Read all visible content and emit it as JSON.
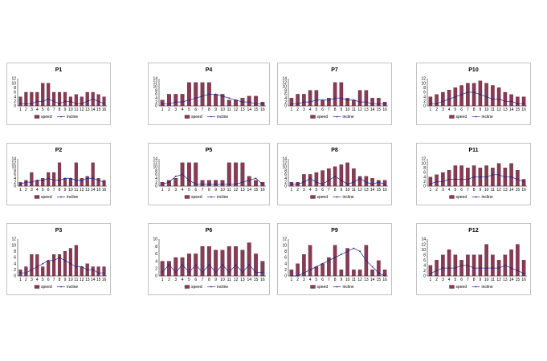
{
  "colors": {
    "bar": "#8b3a55",
    "line": "#1f2a8a",
    "frame": "#999999"
  },
  "chart_data": [
    {
      "type": "bar",
      "title": "P1",
      "categories": [
        "1",
        "2",
        "3",
        "4",
        "5",
        "6",
        "7",
        "8",
        "9",
        "10",
        "11",
        "12",
        "13",
        "14",
        "15",
        "16"
      ],
      "ylim": [
        0,
        12
      ],
      "yticks": [
        "0",
        "2",
        "4",
        "6",
        "8",
        "10",
        "12"
      ],
      "series": [
        {
          "name": "speed",
          "type": "bar",
          "values": [
            4,
            6,
            6,
            6,
            10,
            10,
            6,
            6,
            6,
            4,
            5,
            4,
            6,
            6,
            5,
            4
          ]
        },
        {
          "name": "incline",
          "type": "line",
          "values": [
            1,
            1,
            1,
            2,
            2,
            3,
            2,
            1,
            2,
            2,
            1,
            1,
            2,
            3,
            2,
            1
          ]
        }
      ]
    },
    {
      "type": "bar",
      "title": "P4",
      "categories": [
        "1",
        "2",
        "3",
        "4",
        "5",
        "6",
        "7",
        "8",
        "9",
        "10",
        "11",
        "12",
        "13",
        "14",
        "15",
        "16"
      ],
      "ylim": [
        0,
        14
      ],
      "yticks": [
        "0",
        "2",
        "4",
        "6",
        "8",
        "10",
        "12",
        "14"
      ],
      "series": [
        {
          "name": "speed",
          "type": "bar",
          "values": [
            3,
            6,
            6,
            6,
            12,
            12,
            12,
            12,
            6,
            6,
            3,
            3,
            4,
            5,
            5,
            2
          ]
        },
        {
          "name": "incline",
          "type": "line",
          "values": [
            1,
            1,
            2,
            2,
            3,
            4,
            5,
            6,
            6,
            5,
            4,
            3,
            2,
            2,
            1,
            1
          ]
        }
      ]
    },
    {
      "type": "bar",
      "title": "P7",
      "categories": [
        "1",
        "2",
        "3",
        "4",
        "5",
        "6",
        "7",
        "8",
        "9",
        "10",
        "11",
        "12",
        "13",
        "14",
        "15",
        "16"
      ],
      "ylim": [
        0,
        14
      ],
      "yticks": [
        "0",
        "2",
        "4",
        "6",
        "8",
        "10",
        "12",
        "14"
      ],
      "series": [
        {
          "name": "speed",
          "type": "bar",
          "values": [
            4,
            6,
            6,
            8,
            8,
            3,
            4,
            12,
            12,
            4,
            3,
            8,
            8,
            4,
            4,
            2
          ]
        },
        {
          "name": "incline",
          "type": "line",
          "values": [
            1,
            1,
            2,
            2,
            3,
            3,
            3,
            4,
            4,
            3,
            3,
            2,
            2,
            1,
            1,
            1
          ]
        }
      ]
    },
    {
      "type": "bar",
      "title": "P10",
      "categories": [
        "1",
        "2",
        "3",
        "4",
        "5",
        "6",
        "7",
        "8",
        "9",
        "10",
        "11",
        "12",
        "13",
        "14",
        "15",
        "16"
      ],
      "ylim": [
        0,
        12
      ],
      "yticks": [
        "0",
        "2",
        "4",
        "6",
        "8",
        "10",
        "12"
      ],
      "series": [
        {
          "name": "speed",
          "type": "bar",
          "values": [
            4,
            5,
            6,
            7,
            8,
            9,
            10,
            10,
            11,
            10,
            9,
            8,
            6,
            5,
            4,
            4
          ]
        },
        {
          "name": "incline",
          "type": "line",
          "values": [
            1,
            1,
            2,
            3,
            4,
            5,
            6,
            6,
            5,
            4,
            3,
            3,
            2,
            2,
            1,
            1
          ]
        }
      ]
    },
    {
      "type": "bar",
      "title": "P2",
      "categories": [
        "1",
        "2",
        "3",
        "4",
        "5",
        "6",
        "7",
        "8",
        "9",
        "10",
        "11",
        "12",
        "13",
        "14",
        "15",
        "16"
      ],
      "ylim": [
        0,
        14
      ],
      "yticks": [
        "0",
        "2",
        "4",
        "6",
        "8",
        "10",
        "12",
        "14"
      ],
      "series": [
        {
          "name": "speed",
          "type": "bar",
          "values": [
            2,
            3,
            7,
            3,
            4,
            7,
            7,
            12,
            4,
            4,
            12,
            4,
            5,
            12,
            4,
            3
          ]
        },
        {
          "name": "incline",
          "type": "line",
          "values": [
            1,
            2,
            2,
            3,
            3,
            4,
            3,
            3,
            4,
            4,
            3,
            3,
            4,
            4,
            3,
            2
          ]
        }
      ]
    },
    {
      "type": "bar",
      "title": "P5",
      "categories": [
        "1",
        "2",
        "3",
        "4",
        "5",
        "6",
        "7",
        "8",
        "9",
        "10",
        "11",
        "12",
        "13",
        "14",
        "15",
        "16"
      ],
      "ylim": [
        0,
        14
      ],
      "yticks": [
        "0",
        "2",
        "4",
        "6",
        "8",
        "10",
        "12",
        "14"
      ],
      "series": [
        {
          "name": "speed",
          "type": "bar",
          "values": [
            2,
            3,
            4,
            12,
            12,
            12,
            3,
            3,
            3,
            3,
            12,
            12,
            12,
            5,
            3,
            2
          ]
        },
        {
          "name": "incline",
          "type": "line",
          "values": [
            1,
            2,
            5,
            6,
            3,
            1,
            1,
            1,
            1,
            1,
            1,
            1,
            2,
            3,
            4,
            1
          ]
        }
      ]
    },
    {
      "type": "bar",
      "title": "P8",
      "categories": [
        "1",
        "2",
        "3",
        "4",
        "5",
        "6",
        "7",
        "8",
        "9",
        "10",
        "11",
        "12",
        "13",
        "14",
        "15",
        "16"
      ],
      "ylim": [
        0,
        14
      ],
      "yticks": [
        "0",
        "2",
        "4",
        "6",
        "8",
        "10",
        "12",
        "14"
      ],
      "series": [
        {
          "name": "speed",
          "type": "bar",
          "values": [
            2,
            2,
            6,
            6,
            7,
            8,
            9,
            10,
            11,
            12,
            9,
            5,
            5,
            4,
            3,
            3
          ]
        },
        {
          "name": "incline",
          "type": "line",
          "values": [
            1,
            1,
            2,
            4,
            2,
            1,
            3,
            5,
            3,
            1,
            2,
            4,
            2,
            1,
            2,
            1
          ]
        }
      ]
    },
    {
      "type": "bar",
      "title": "P11",
      "categories": [
        "1",
        "2",
        "3",
        "4",
        "5",
        "6",
        "7",
        "8",
        "9",
        "10",
        "11",
        "12",
        "13",
        "14",
        "15",
        "16"
      ],
      "ylim": [
        0,
        12
      ],
      "yticks": [
        "0",
        "2",
        "4",
        "6",
        "8",
        "10",
        "12"
      ],
      "series": [
        {
          "name": "speed",
          "type": "bar",
          "values": [
            4,
            5,
            6,
            7,
            9,
            9,
            8,
            9,
            8,
            9,
            8,
            10,
            8,
            10,
            7,
            3
          ]
        },
        {
          "name": "incline",
          "type": "line",
          "values": [
            1,
            2,
            2,
            3,
            3,
            3,
            3,
            4,
            4,
            4,
            5,
            5,
            4,
            4,
            3,
            2
          ]
        }
      ]
    },
    {
      "type": "bar",
      "title": "P3",
      "categories": [
        "1",
        "2",
        "3",
        "4",
        "5",
        "6",
        "7",
        "8",
        "9",
        "10",
        "11",
        "12",
        "13",
        "14",
        "15",
        "16"
      ],
      "ylim": [
        0,
        12
      ],
      "yticks": [
        "0",
        "2",
        "4",
        "6",
        "8",
        "10",
        "12"
      ],
      "series": [
        {
          "name": "speed",
          "type": "bar",
          "values": [
            2,
            3,
            7,
            7,
            3,
            5,
            7,
            7,
            8,
            9,
            10,
            3,
            4,
            3,
            3,
            3
          ]
        },
        {
          "name": "incline",
          "type": "line",
          "values": [
            1,
            1,
            2,
            3,
            4,
            5,
            5,
            6,
            5,
            4,
            3,
            3,
            2,
            2,
            1,
            1
          ]
        }
      ]
    },
    {
      "type": "bar",
      "title": "P6",
      "categories": [
        "1",
        "2",
        "3",
        "4",
        "5",
        "6",
        "7",
        "8",
        "9",
        "10",
        "11",
        "12",
        "13",
        "14",
        "15",
        "16"
      ],
      "ylim": [
        0,
        10
      ],
      "yticks": [
        "0",
        "2",
        "4",
        "6",
        "8",
        "10"
      ],
      "series": [
        {
          "name": "speed",
          "type": "bar",
          "values": [
            4,
            4,
            5,
            5,
            6,
            6,
            8,
            8,
            7,
            7,
            8,
            8,
            7,
            9,
            6,
            4
          ]
        },
        {
          "name": "incline",
          "type": "line",
          "values": [
            1,
            3,
            1,
            3,
            1,
            3,
            1,
            3,
            1,
            3,
            1,
            3,
            1,
            3,
            1,
            1
          ]
        }
      ]
    },
    {
      "type": "bar",
      "title": "P9",
      "categories": [
        "1",
        "2",
        "3",
        "4",
        "5",
        "6",
        "7",
        "8",
        "9",
        "10",
        "11",
        "12",
        "13",
        "14",
        "15",
        "16"
      ],
      "ylim": [
        0,
        12
      ],
      "yticks": [
        "0",
        "2",
        "4",
        "6",
        "8",
        "10",
        "12"
      ],
      "series": [
        {
          "name": "speed",
          "type": "bar",
          "values": [
            2,
            4,
            7,
            10,
            3,
            4,
            6,
            10,
            2,
            9,
            2,
            2,
            10,
            2,
            5,
            2
          ]
        },
        {
          "name": "incline",
          "type": "line",
          "values": [
            0,
            0,
            1,
            2,
            3,
            4,
            5,
            6,
            7,
            8,
            9,
            8,
            5,
            3,
            1,
            0
          ]
        }
      ]
    },
    {
      "type": "bar",
      "title": "P12",
      "categories": [
        "1",
        "2",
        "3",
        "4",
        "5",
        "6",
        "7",
        "8",
        "9",
        "10",
        "11",
        "12",
        "13",
        "14",
        "15",
        "16"
      ],
      "ylim": [
        0,
        14
      ],
      "yticks": [
        "0",
        "2",
        "4",
        "6",
        "8",
        "10",
        "12",
        "14"
      ],
      "series": [
        {
          "name": "speed",
          "type": "bar",
          "values": [
            4,
            6,
            8,
            10,
            8,
            6,
            8,
            8,
            8,
            12,
            8,
            6,
            8,
            10,
            12,
            6
          ]
        },
        {
          "name": "incline",
          "type": "line",
          "values": [
            1,
            2,
            3,
            3,
            3,
            4,
            4,
            3,
            3,
            3,
            3,
            3,
            4,
            3,
            2,
            1
          ]
        }
      ]
    }
  ]
}
